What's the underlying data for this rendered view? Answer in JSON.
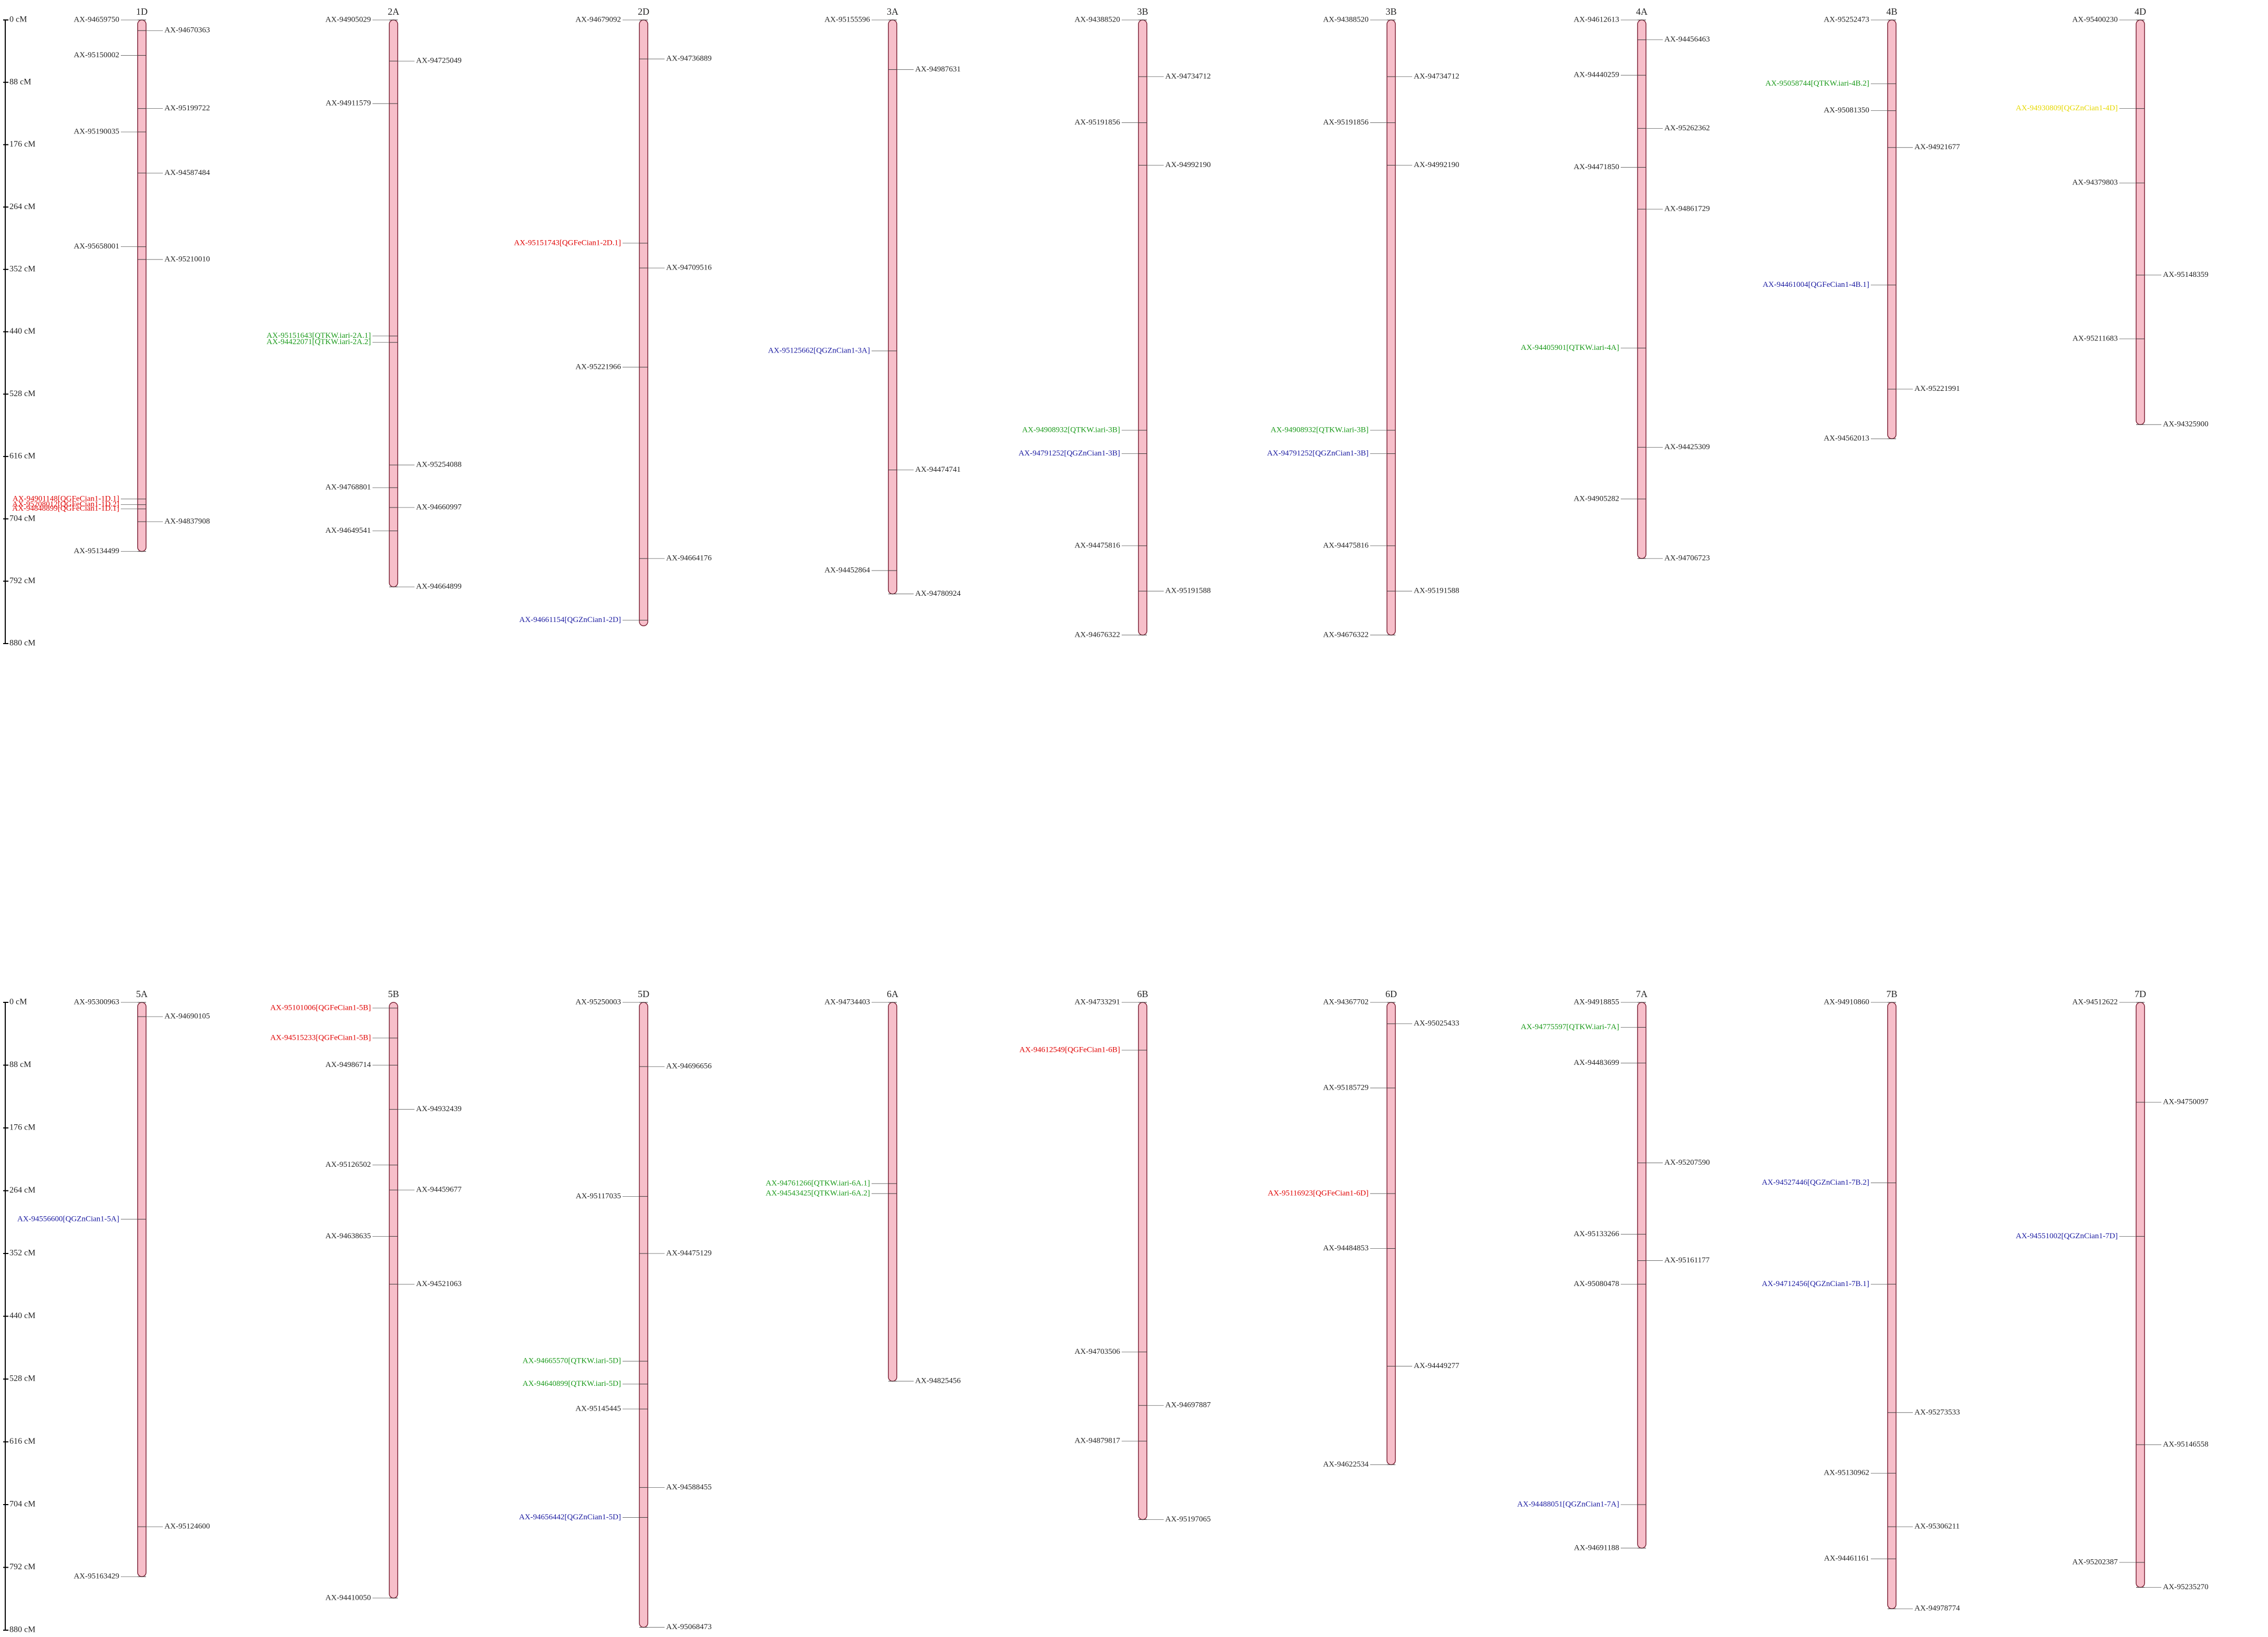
{
  "chart_data": [
    {
      "type": "linkage",
      "ylim": [
        0,
        880
      ],
      "yticks": [
        {
          "value": 0,
          "label": "0 cM"
        },
        {
          "value": 88,
          "label": "88 cM"
        },
        {
          "value": 176,
          "label": "176 cM"
        },
        {
          "value": 264,
          "label": "264 cM"
        },
        {
          "value": 352,
          "label": "352 cM"
        },
        {
          "value": 440,
          "label": "440 cM"
        },
        {
          "value": 528,
          "label": "528 cM"
        },
        {
          "value": 616,
          "label": "616 cM"
        },
        {
          "value": 704,
          "label": "704 cM"
        },
        {
          "value": 792,
          "label": "792 cM"
        },
        {
          "value": 880,
          "label": "880 cM"
        }
      ],
      "chromosomes": [
        {
          "name": "1D",
          "length": 750,
          "markers": [
            {
              "label": "AX-94659750",
              "position": 0
            },
            {
              "label": "AX-94670363",
              "position": 15
            },
            {
              "label": "AX-95150002",
              "position": 50
            },
            {
              "label": "AX-95199722",
              "position": 125
            },
            {
              "label": "AX-95190035",
              "position": 158
            },
            {
              "label": "AX-94587484",
              "position": 216
            },
            {
              "label": "AX-95658001",
              "position": 320
            },
            {
              "label": "AX-95210010",
              "position": 338
            },
            {
              "label": "AX-94901148[QGFeCian1-1D.1]",
              "position": 676,
              "color": "#e00000"
            },
            {
              "label": "AX-94848899[QGFeCian1-1D.1]",
              "position": 690,
              "color": "#e00000"
            },
            {
              "label": "AX-95208012[QGFeCian1-1D.2]",
              "position": 684,
              "color": "#e00000"
            },
            {
              "label": "AX-94837908",
              "position": 708
            },
            {
              "label": "AX-95134499",
              "position": 750
            }
          ]
        },
        {
          "name": "2A",
          "length": 800,
          "markers": [
            {
              "label": "AX-94905029",
              "position": 0
            },
            {
              "label": "AX-94725049",
              "position": 58
            },
            {
              "label": "AX-94911579",
              "position": 118
            },
            {
              "label": "AX-95151643[QTKW.iari-2A.1]",
              "position": 446,
              "color": "#1a9a1a"
            },
            {
              "label": "AX-94422071[QTKW.iari-2A.2]",
              "position": 455,
              "color": "#1a9a1a"
            },
            {
              "label": "AX-95254088",
              "position": 628
            },
            {
              "label": "AX-94768801",
              "position": 660
            },
            {
              "label": "AX-94660997",
              "position": 688
            },
            {
              "label": "AX-94649541",
              "position": 721
            },
            {
              "label": "AX-94664899",
              "position": 800
            }
          ]
        },
        {
          "name": "2D",
          "length": 855,
          "markers": [
            {
              "label": "AX-94679092",
              "position": 0
            },
            {
              "label": "AX-94736889",
              "position": 55
            },
            {
              "label": "AX-95151743[QGFeCian1-2D.1]",
              "position": 315,
              "color": "#e00000"
            },
            {
              "label": "AX-94709516",
              "position": 350
            },
            {
              "label": "AX-95221966",
              "position": 490
            },
            {
              "label": "AX-94664176",
              "position": 760
            },
            {
              "label": "AX-94661154[QGZnCian1-2D]",
              "position": 847,
              "color": "#1a1aa0"
            }
          ]
        },
        {
          "name": "3A",
          "length": 810,
          "markers": [
            {
              "label": "AX-95155596",
              "position": 0
            },
            {
              "label": "AX-94987631",
              "position": 70
            },
            {
              "label": "AX-95125662[QGZnCian1-3A]",
              "position": 467,
              "color": "#1a1aa0"
            },
            {
              "label": "AX-94474741",
              "position": 635
            },
            {
              "label": "AX-94452864",
              "position": 777
            },
            {
              "label": "AX-94780924",
              "position": 810
            }
          ]
        },
        {
          "name": "3B",
          "length": 868,
          "markers": [
            {
              "label": "AX-94388520",
              "position": 0
            },
            {
              "label": "AX-94734712",
              "position": 80
            },
            {
              "label": "AX-95191856",
              "position": 145
            },
            {
              "label": "AX-94992190",
              "position": 205
            },
            {
              "label": "AX-94908932[QTKW.iari-3B]",
              "position": 579,
              "color": "#1a9a1a"
            },
            {
              "label": "AX-94791252[QGZnCian1-3B]",
              "position": 612,
              "color": "#1a1aa0"
            },
            {
              "label": "AX-94475816",
              "position": 742
            },
            {
              "label": "AX-95191588",
              "position": 806
            },
            {
              "label": "AX-94676322",
              "position": 868
            }
          ]
        },
        {
          "name": "3B",
          "length": 868,
          "markers": [
            {
              "label": "AX-94388520",
              "position": 0
            },
            {
              "label": "AX-94734712",
              "position": 80
            },
            {
              "label": "AX-95191856",
              "position": 145
            },
            {
              "label": "AX-94992190",
              "position": 205
            },
            {
              "label": "AX-94908932[QTKW.iari-3B]",
              "position": 579,
              "color": "#1a9a1a"
            },
            {
              "label": "AX-94791252[QGZnCian1-3B]",
              "position": 612,
              "color": "#1a1aa0"
            },
            {
              "label": "AX-94475816",
              "position": 742
            },
            {
              "label": "AX-95191588",
              "position": 806
            },
            {
              "label": "AX-94676322",
              "position": 868
            }
          ]
        },
        {
          "name": "4A",
          "length": 760,
          "markers": [
            {
              "label": "AX-94612613",
              "position": 0
            },
            {
              "label": "AX-94456463",
              "position": 28
            },
            {
              "label": "AX-94440259",
              "position": 78
            },
            {
              "label": "AX-95262362",
              "position": 153
            },
            {
              "label": "AX-94471850",
              "position": 208
            },
            {
              "label": "AX-94861729",
              "position": 267
            },
            {
              "label": "AX-94405901[QTKW.iari-4A]",
              "position": 463,
              "color": "#1a9a1a"
            },
            {
              "label": "AX-94425309",
              "position": 603
            },
            {
              "label": "AX-94905282",
              "position": 676
            },
            {
              "label": "AX-94706723",
              "position": 760
            }
          ]
        },
        {
          "name": "4B",
          "length": 591,
          "markers": [
            {
              "label": "AX-95252473",
              "position": 0
            },
            {
              "label": "AX-95058744[QTKW.iari-4B.2]",
              "position": 90,
              "color": "#1a9a1a"
            },
            {
              "label": "AX-95081350",
              "position": 128
            },
            {
              "label": "AX-94921677",
              "position": 180
            },
            {
              "label": "AX-94461004[QGFeCian1-4B.1]",
              "position": 374,
              "color": "#1a1aa0"
            },
            {
              "label": "AX-95221991",
              "position": 521
            },
            {
              "label": "AX-94562013",
              "position": 591
            }
          ]
        },
        {
          "name": "4D",
          "length": 571,
          "markers": [
            {
              "label": "AX-95400230",
              "position": 0
            },
            {
              "label": "AX-94930809[QGZnCian1-4D]",
              "position": 125,
              "color": "#e6d800"
            },
            {
              "label": "AX-94379803",
              "position": 230
            },
            {
              "label": "AX-95148359",
              "position": 360
            },
            {
              "label": "AX-95211683",
              "position": 450
            },
            {
              "label": "AX-94325900",
              "position": 571
            }
          ]
        }
      ]
    },
    {
      "type": "linkage",
      "ylim": [
        0,
        880
      ],
      "yticks": [
        {
          "value": 0,
          "label": "0 cM"
        },
        {
          "value": 88,
          "label": "88 cM"
        },
        {
          "value": 176,
          "label": "176 cM"
        },
        {
          "value": 264,
          "label": "264 cM"
        },
        {
          "value": 352,
          "label": "352 cM"
        },
        {
          "value": 440,
          "label": "440 cM"
        },
        {
          "value": 528,
          "label": "528 cM"
        },
        {
          "value": 616,
          "label": "616 cM"
        },
        {
          "value": 704,
          "label": "704 cM"
        },
        {
          "value": 792,
          "label": "792 cM"
        },
        {
          "value": 880,
          "label": "880 cM"
        }
      ],
      "chromosomes": [
        {
          "name": "5A",
          "length": 805,
          "markers": [
            {
              "label": "AX-95300963",
              "position": 0
            },
            {
              "label": "AX-94690105",
              "position": 20
            },
            {
              "label": "AX-94556600[QGZnCian1-5A]",
              "position": 304,
              "color": "#1a1aa0"
            },
            {
              "label": "AX-95124600",
              "position": 735
            },
            {
              "label": "AX-95163429",
              "position": 805
            }
          ]
        },
        {
          "name": "5B",
          "length": 835,
          "markers": [
            {
              "label": "AX-95101006[QGFeCian1-5B]",
              "position": 8,
              "color": "#e00000"
            },
            {
              "label": "AX-94515233[QGFeCian1-5B]",
              "position": 50,
              "color": "#e00000"
            },
            {
              "label": "AX-94986714",
              "position": 88
            },
            {
              "label": "AX-94932439",
              "position": 150
            },
            {
              "label": "AX-95126502",
              "position": 228
            },
            {
              "label": "AX-94459677",
              "position": 263
            },
            {
              "label": "AX-94638635",
              "position": 328
            },
            {
              "label": "AX-94521063",
              "position": 395
            },
            {
              "label": "AX-94410050",
              "position": 835
            }
          ]
        },
        {
          "name": "5D",
          "length": 876,
          "markers": [
            {
              "label": "AX-95250003",
              "position": 0
            },
            {
              "label": "AX-94696656",
              "position": 90
            },
            {
              "label": "AX-95117035",
              "position": 272
            },
            {
              "label": "AX-94475129",
              "position": 352
            },
            {
              "label": "AX-94665570[QTKW.iari-5D]",
              "position": 503,
              "color": "#1a9a1a"
            },
            {
              "label": "AX-94640899[QTKW.iari-5D]",
              "position": 535,
              "color": "#1a9a1a"
            },
            {
              "label": "AX-95145445",
              "position": 570
            },
            {
              "label": "AX-94588455",
              "position": 680
            },
            {
              "label": "AX-94656442[QGZnCian1-5D]",
              "position": 722,
              "color": "#1a1aa0"
            },
            {
              "label": "AX-95068473",
              "position": 876
            }
          ]
        },
        {
          "name": "6A",
          "length": 531,
          "markers": [
            {
              "label": "AX-94734403",
              "position": 0
            },
            {
              "label": "AX-94761266[QTKW.iari-6A.1]",
              "position": 254,
              "color": "#1a9a1a"
            },
            {
              "label": "AX-94543425[QTKW.iari-6A.2]",
              "position": 268,
              "color": "#1a9a1a"
            },
            {
              "label": "AX-94825456",
              "position": 531
            }
          ]
        },
        {
          "name": "6B",
          "length": 725,
          "markers": [
            {
              "label": "AX-94733291",
              "position": 0
            },
            {
              "label": "AX-94612549[QGFeCian1-6B]",
              "position": 67,
              "color": "#e00000"
            },
            {
              "label": "AX-94703506",
              "position": 490
            },
            {
              "label": "AX-94697887",
              "position": 565
            },
            {
              "label": "AX-94879817",
              "position": 615
            },
            {
              "label": "AX-95197065",
              "position": 725
            }
          ]
        },
        {
          "name": "6D",
          "length": 648,
          "markers": [
            {
              "label": "AX-94367702",
              "position": 0
            },
            {
              "label": "AX-95025433",
              "position": 30
            },
            {
              "label": "AX-95185729",
              "position": 120
            },
            {
              "label": "AX-95116923[QGFeCian1-6D]",
              "position": 268,
              "color": "#e00000"
            },
            {
              "label": "AX-94484853",
              "position": 345
            },
            {
              "label": "AX-94449277",
              "position": 510
            },
            {
              "label": "AX-94622534",
              "position": 648
            }
          ]
        },
        {
          "name": "7A",
          "length": 765,
          "markers": [
            {
              "label": "AX-94918855",
              "position": 0
            },
            {
              "label": "AX-94775597[QTKW.iari-7A]",
              "position": 35,
              "color": "#1a9a1a"
            },
            {
              "label": "AX-94483699",
              "position": 85
            },
            {
              "label": "AX-95207590",
              "position": 225
            },
            {
              "label": "AX-95133266",
              "position": 325
            },
            {
              "label": "AX-95161177",
              "position": 362
            },
            {
              "label": "AX-95080478",
              "position": 395
            },
            {
              "label": "AX-94488051[QGZnCian1-7A]",
              "position": 704,
              "color": "#1a1aa0"
            },
            {
              "label": "AX-94691188",
              "position": 765
            }
          ]
        },
        {
          "name": "7B",
          "length": 850,
          "markers": [
            {
              "label": "AX-94910860",
              "position": 0
            },
            {
              "label": "AX-94527446[QGZnCian1-7B.2]",
              "position": 253,
              "color": "#1a1aa0"
            },
            {
              "label": "AX-94712456[QGZnCian1-7B.1]",
              "position": 395,
              "color": "#1a1aa0"
            },
            {
              "label": "AX-95273533",
              "position": 575
            },
            {
              "label": "AX-95130962",
              "position": 660
            },
            {
              "label": "AX-95306211",
              "position": 735
            },
            {
              "label": "AX-94461161",
              "position": 780
            },
            {
              "label": "AX-94978774",
              "position": 850
            }
          ]
        },
        {
          "name": "7D",
          "length": 820,
          "markers": [
            {
              "label": "AX-94512622",
              "position": 0
            },
            {
              "label": "AX-94750097",
              "position": 140
            },
            {
              "label": "AX-94551002[QGZnCian1-7D]",
              "position": 328,
              "color": "#1a1aa0"
            },
            {
              "label": "AX-95146558",
              "position": 620
            },
            {
              "label": "AX-95202387",
              "position": 785
            },
            {
              "label": "AX-95235270",
              "position": 820
            }
          ]
        }
      ]
    }
  ]
}
